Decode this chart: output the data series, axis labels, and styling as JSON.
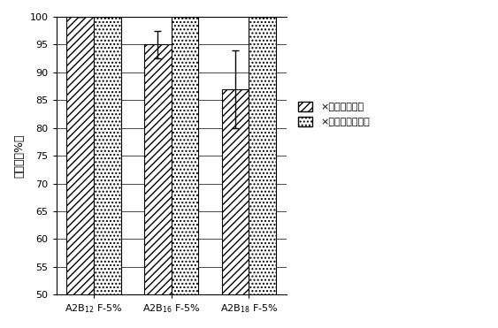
{
  "categories": [
    "A2B$_{12}$ F-5%",
    "A2B$_{16}$ F-5%",
    "A2B$_{18}$ F-5%"
  ],
  "series1_values": [
    100,
    95,
    87
  ],
  "series2_values": [
    100,
    100,
    100
  ],
  "series1_errors": [
    0,
    2.5,
    7
  ],
  "series2_errors": [
    0,
    0,
    0
  ],
  "series1_label": "×大肠埃希氏菌",
  "series2_label": "×金黄色葡萄球菌",
  "ylabel": "抗菌率（%）",
  "ylim": [
    50,
    100
  ],
  "yticks": [
    50,
    55,
    60,
    65,
    70,
    75,
    80,
    85,
    90,
    95,
    100
  ],
  "bar_width": 0.35,
  "hatch1": "////",
  "hatch2": "....",
  "background_color": "#ffffff"
}
